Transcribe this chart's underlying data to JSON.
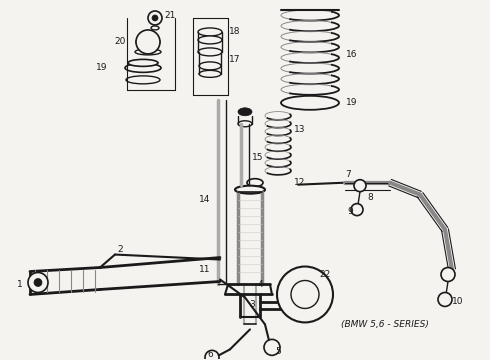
{
  "bg_color": "#f5f3f0",
  "line_color": "#1a1a1a",
  "figsize": [
    4.9,
    3.6
  ],
  "dpi": 100,
  "note_text": "(BMW 5,6 - SERIES)"
}
